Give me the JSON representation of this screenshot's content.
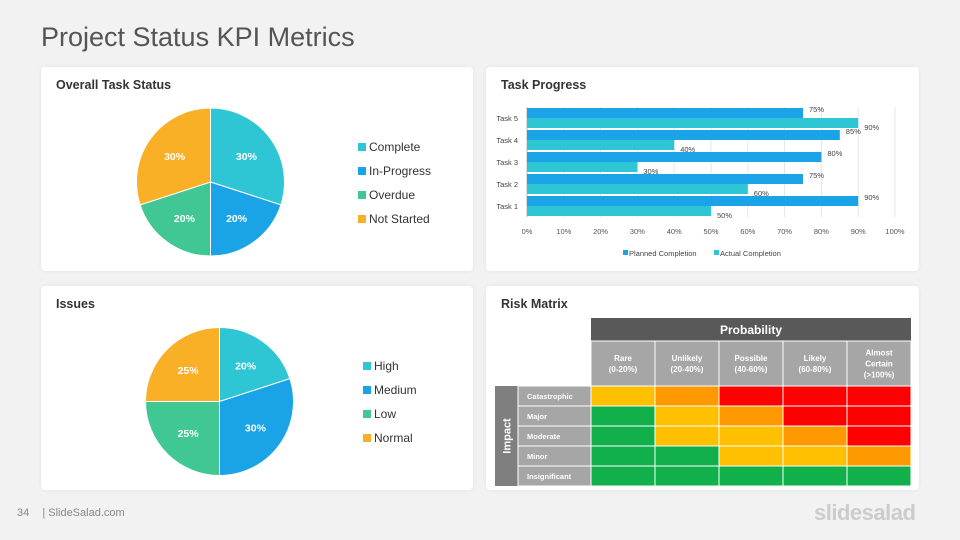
{
  "page": {
    "title": "Project Status KPI Metrics"
  },
  "colors": {
    "teal": "#2ec6d4",
    "blue": "#1aa3e6",
    "green": "#40c794",
    "orange": "#f9b026",
    "planned": "#1aa3e6",
    "actual": "#2ec6d4"
  },
  "footer": {
    "page_number": "34",
    "site": "| SlideSalad.com",
    "brand": "slidesalad"
  },
  "overall": {
    "title": "Overall Task Status",
    "legend": [
      "Complete",
      "In-Progress",
      "Overdue",
      "Not Started"
    ]
  },
  "progress": {
    "title": "Task Progress",
    "legend": [
      "Planned Completion",
      "Actual Completion"
    ]
  },
  "issues": {
    "title": "Issues",
    "legend": [
      "High",
      "Medium",
      "Low",
      "Normal"
    ]
  },
  "risk": {
    "title": "Risk Matrix",
    "probability_label": "Probability",
    "impact_label": "Impact",
    "columns": [
      "Rare\n(0-20%)",
      "Unlikely\n(20-40%)",
      "Possible\n(40-60%)",
      "Likely\n(60-80%)",
      "Almost\nCertain\n(>100%)"
    ],
    "rows": [
      "Catastrophic",
      "Major",
      "Moderate",
      "Minor",
      "Insignificant"
    ],
    "cells": [
      [
        "yellow",
        "orange",
        "red",
        "red",
        "red"
      ],
      [
        "green",
        "yellow",
        "orange",
        "red",
        "red"
      ],
      [
        "green",
        "yellow",
        "yellow",
        "orange",
        "red"
      ],
      [
        "green",
        "green",
        "yellow",
        "yellow",
        "orange"
      ],
      [
        "green",
        "green",
        "green",
        "green",
        "green"
      ]
    ],
    "cell_colors": {
      "green": "#11b04b",
      "yellow": "#fec000",
      "orange": "#ff9900",
      "red": "#ff0000"
    }
  },
  "chart_data": [
    {
      "type": "pie",
      "title": "Overall Task Status",
      "categories": [
        "Complete",
        "In-Progress",
        "Overdue",
        "Not Started"
      ],
      "values": [
        30,
        20,
        20,
        30
      ],
      "labels": [
        "30%",
        "20%",
        "20%",
        "30%"
      ]
    },
    {
      "type": "bar",
      "title": "Task Progress",
      "orientation": "horizontal",
      "categories": [
        "Task 1",
        "Task 2",
        "Task 3",
        "Task 4",
        "Task 5"
      ],
      "series": [
        {
          "name": "Planned Completion",
          "values": [
            90,
            75,
            80,
            85,
            75
          ]
        },
        {
          "name": "Actual Completion",
          "values": [
            50,
            60,
            30,
            40,
            90
          ]
        }
      ],
      "xlim": [
        0,
        100
      ],
      "xticks": [
        "0%",
        "10%",
        "20%",
        "30%",
        "40%",
        "50%",
        "60%",
        "70%",
        "80%",
        "90%",
        "100%"
      ],
      "legend": "bottom"
    },
    {
      "type": "pie",
      "title": "Issues",
      "categories": [
        "High",
        "Medium",
        "Low",
        "Normal"
      ],
      "values": [
        20,
        30,
        25,
        25
      ],
      "labels": [
        "20%",
        "30%",
        "25%",
        "25%"
      ]
    }
  ]
}
